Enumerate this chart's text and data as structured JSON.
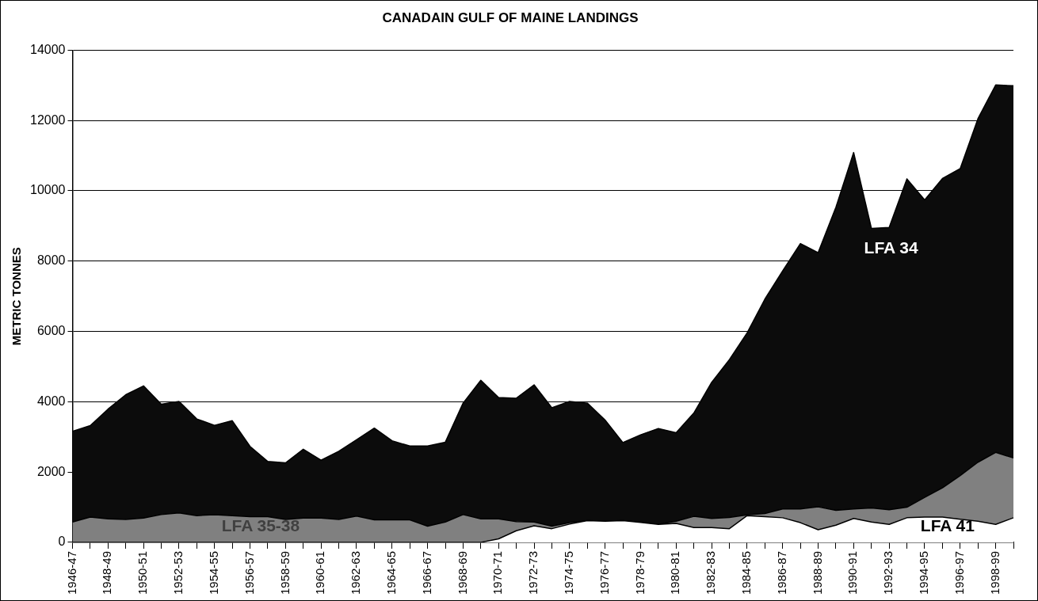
{
  "chart_data": {
    "type": "area",
    "title": "CANADAIN GULF OF MAINE LANDINGS",
    "ylabel": "METRIC TONNES",
    "categories": [
      "1946-47",
      null,
      "1948-49",
      null,
      "1950-51",
      null,
      "1952-53",
      null,
      "1954-55",
      null,
      "1956-57",
      null,
      "1958-59",
      null,
      "1960-61",
      null,
      "1962-63",
      null,
      "1964-65",
      null,
      "1966-67",
      null,
      "1968-69",
      null,
      "1970-71",
      null,
      "1972-73",
      null,
      "1974-75",
      null,
      "1976-77",
      null,
      "1978-79",
      null,
      "1980-81",
      null,
      "1982-83",
      null,
      "1984-85",
      null,
      "1986-87",
      null,
      "1988-89",
      null,
      "1990-91",
      null,
      "1992-93",
      null,
      "1994-95",
      null,
      "1996-97",
      null,
      "1998-99",
      null
    ],
    "stacked": true,
    "series": [
      {
        "name": "LFA 41",
        "color": "#ffffff",
        "values": [
          0,
          0,
          0,
          0,
          0,
          0,
          0,
          0,
          0,
          0,
          0,
          0,
          0,
          0,
          0,
          0,
          0,
          0,
          0,
          0,
          0,
          0,
          0,
          0,
          100,
          330,
          470,
          390,
          520,
          620,
          600,
          620,
          570,
          510,
          540,
          420,
          420,
          390,
          760,
          730,
          700,
          560,
          360,
          490,
          680,
          580,
          510,
          700,
          720,
          720,
          660,
          600,
          510,
          700
        ]
      },
      {
        "name": "LFA 35-38",
        "color": "#808080",
        "values": [
          580,
          720,
          670,
          650,
          690,
          790,
          840,
          760,
          790,
          760,
          730,
          730,
          650,
          690,
          690,
          650,
          750,
          640,
          640,
          640,
          460,
          580,
          790,
          670,
          570,
          260,
          110,
          70,
          40,
          0,
          0,
          0,
          0,
          0,
          60,
          320,
          260,
          320,
          20,
          90,
          250,
          390,
          650,
          420,
          270,
          400,
          420,
          300,
          560,
          830,
          1240,
          1680,
          2050,
          1700
        ]
      },
      {
        "name": "LFA 34",
        "color": "#0c0c0c",
        "values": [
          2580,
          2600,
          3120,
          3550,
          3760,
          3140,
          3170,
          2750,
          2540,
          2700,
          2000,
          1570,
          1610,
          1960,
          1650,
          1940,
          2170,
          2610,
          2250,
          2100,
          2280,
          2270,
          3170,
          3940,
          3450,
          3510,
          3900,
          3370,
          3450,
          3340,
          2880,
          2220,
          2490,
          2730,
          2520,
          2940,
          3870,
          4490,
          5180,
          6100,
          6770,
          7550,
          7230,
          8620,
          10140,
          7950,
          8030,
          9340,
          8460,
          8800,
          8730,
          9770,
          10450,
          10590
        ]
      }
    ],
    "ylim": [
      0,
      14000
    ],
    "yticks": [
      0,
      2000,
      4000,
      6000,
      8000,
      10000,
      12000,
      14000
    ],
    "grid": "y",
    "legend": false
  }
}
